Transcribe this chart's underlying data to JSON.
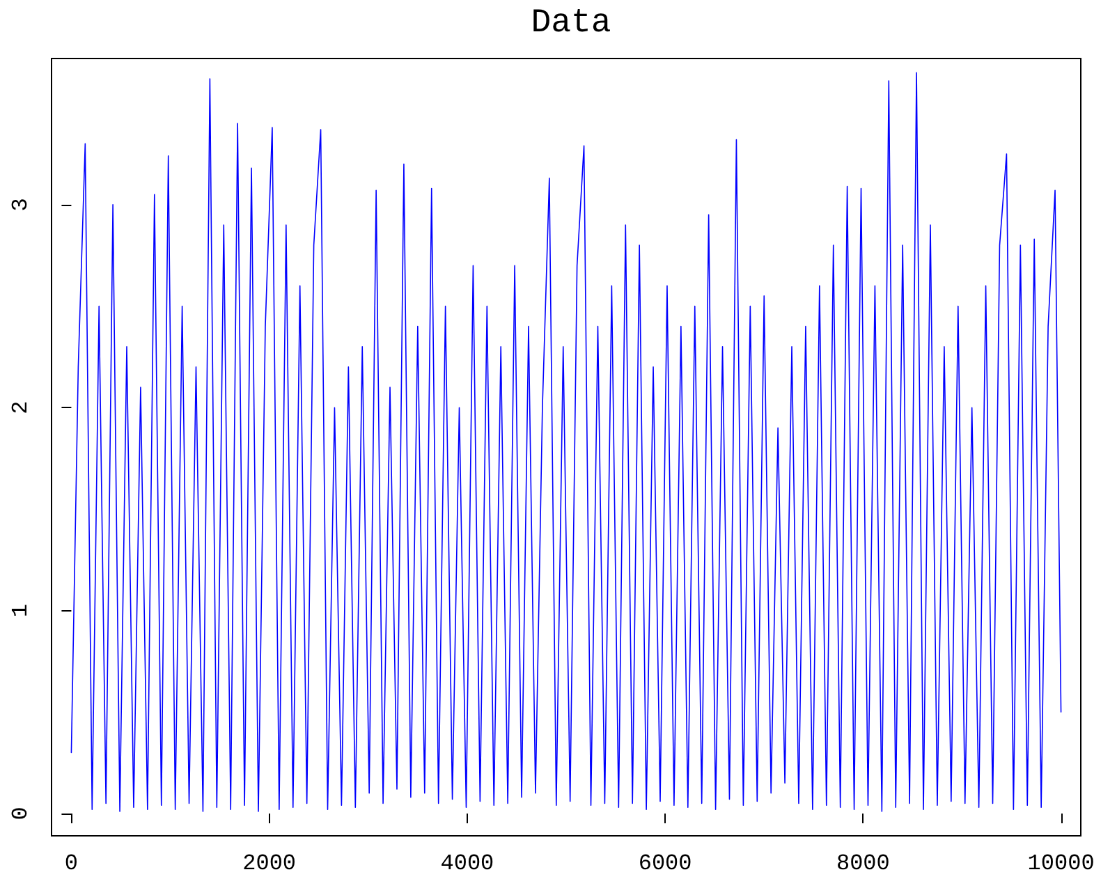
{
  "chart_data": {
    "type": "line",
    "title": "Data",
    "x": [
      0,
      70,
      140,
      210,
      280,
      350,
      420,
      490,
      560,
      630,
      700,
      770,
      840,
      910,
      980,
      1050,
      1120,
      1190,
      1260,
      1330,
      1400,
      1470,
      1540,
      1610,
      1680,
      1750,
      1820,
      1890,
      1960,
      2030,
      2100,
      2170,
      2240,
      2310,
      2380,
      2450,
      2520,
      2590,
      2660,
      2730,
      2800,
      2870,
      2940,
      3010,
      3080,
      3150,
      3220,
      3290,
      3360,
      3430,
      3500,
      3570,
      3640,
      3710,
      3780,
      3850,
      3920,
      3990,
      4060,
      4130,
      4200,
      4270,
      4340,
      4410,
      4480,
      4550,
      4620,
      4690,
      4760,
      4830,
      4900,
      4970,
      5040,
      5110,
      5180,
      5250,
      5320,
      5390,
      5460,
      5530,
      5600,
      5670,
      5740,
      5810,
      5880,
      5950,
      6020,
      6090,
      6160,
      6230,
      6300,
      6370,
      6440,
      6510,
      6580,
      6650,
      6720,
      6790,
      6860,
      6930,
      7000,
      7070,
      7140,
      7210,
      7280,
      7350,
      7420,
      7490,
      7560,
      7630,
      7700,
      7770,
      7840,
      7910,
      7980,
      8050,
      8120,
      8190,
      8260,
      8330,
      8400,
      8470,
      8540,
      8610,
      8680,
      8750,
      8820,
      8890,
      8960,
      9030,
      9100,
      9170,
      9240,
      9310,
      9380,
      9450,
      9520,
      9590,
      9660,
      9730,
      9800,
      9870,
      9940,
      10000
    ],
    "series": [
      {
        "color": "#0000ff",
        "values": [
          0.3,
          2.2,
          3.3,
          0.02,
          2.5,
          0.05,
          3.0,
          0.01,
          2.3,
          0.03,
          2.1,
          0.02,
          3.05,
          0.04,
          3.24,
          0.02,
          2.5,
          0.05,
          2.2,
          0.01,
          3.62,
          0.03,
          2.9,
          0.02,
          3.4,
          0.04,
          3.18,
          0.01,
          2.4,
          3.38,
          0.02,
          2.9,
          0.03,
          2.6,
          0.05,
          2.8,
          3.37,
          0.02,
          2.0,
          0.04,
          2.2,
          0.03,
          2.3,
          0.1,
          3.07,
          0.05,
          2.1,
          0.12,
          3.2,
          0.08,
          2.4,
          0.1,
          3.08,
          0.05,
          2.5,
          0.07,
          2.0,
          0.03,
          2.7,
          0.06,
          2.5,
          0.04,
          2.3,
          0.05,
          2.7,
          0.08,
          2.4,
          0.1,
          2.0,
          3.13,
          0.04,
          2.3,
          0.06,
          2.7,
          3.29,
          0.04,
          2.4,
          0.05,
          2.6,
          0.03,
          2.9,
          0.05,
          2.8,
          0.02,
          2.2,
          0.06,
          2.6,
          0.04,
          2.4,
          0.03,
          2.5,
          0.05,
          2.95,
          0.02,
          2.3,
          0.07,
          3.32,
          0.04,
          2.5,
          0.06,
          2.55,
          0.1,
          1.9,
          0.15,
          2.3,
          0.05,
          2.4,
          0.02,
          2.6,
          0.04,
          2.8,
          0.03,
          3.09,
          0.02,
          3.08,
          0.04,
          2.6,
          0.01,
          3.61,
          0.03,
          2.8,
          0.05,
          3.65,
          0.02,
          2.9,
          0.04,
          2.3,
          0.06,
          2.5,
          0.05,
          2.0,
          0.03,
          2.6,
          0.05,
          2.8,
          3.25,
          0.02,
          2.8,
          0.04,
          2.83,
          0.03,
          2.4,
          3.07,
          0.5
        ]
      }
    ],
    "xlim": [
      -200,
      10200
    ],
    "ylim": [
      -0.11,
      3.72
    ],
    "xticks": [
      0,
      2000,
      4000,
      6000,
      8000,
      10000
    ],
    "yticks": [
      0,
      1,
      2,
      3
    ],
    "grid": false,
    "marker": "none",
    "line_style": "solid"
  }
}
